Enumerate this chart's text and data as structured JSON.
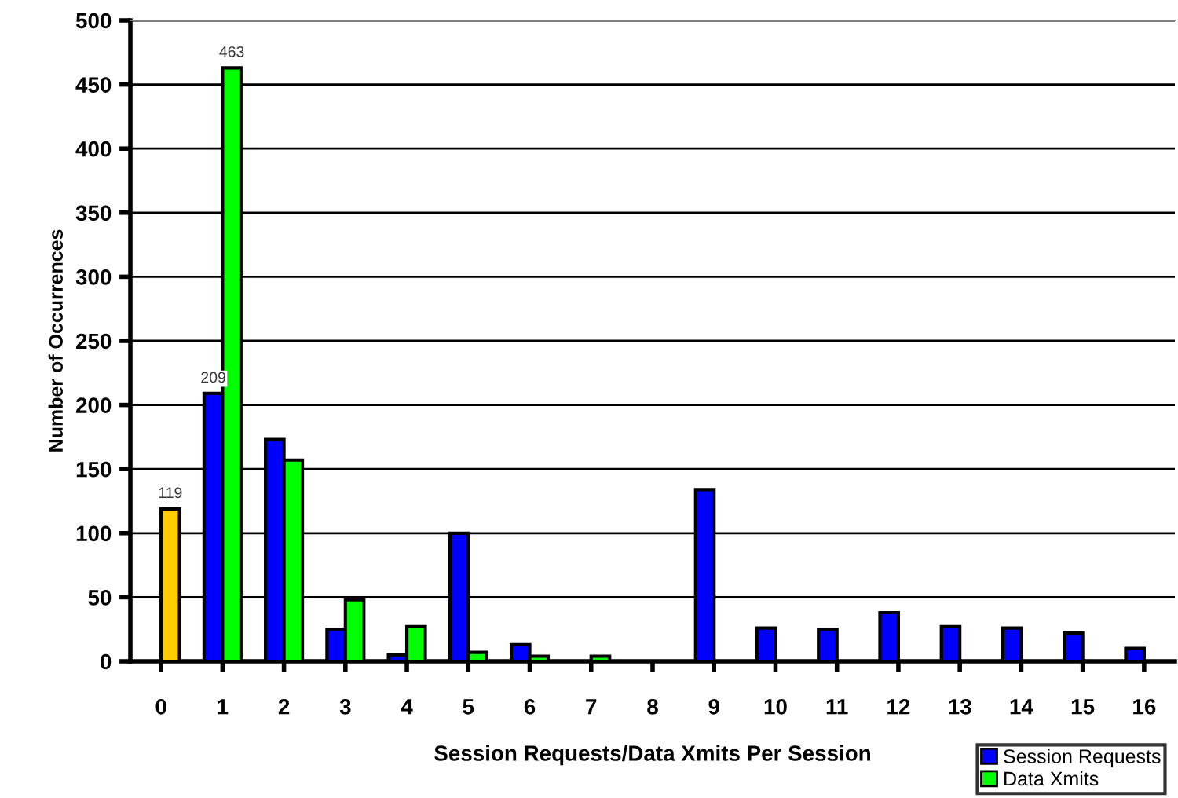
{
  "chart_data": {
    "type": "bar",
    "xlabel": "Session Requests/Data Xmits Per Session",
    "ylabel": "Number of Occurrences",
    "categories": [
      "0",
      "1",
      "2",
      "3",
      "4",
      "5",
      "6",
      "7",
      "8",
      "9",
      "10",
      "11",
      "12",
      "13",
      "14",
      "15",
      "16"
    ],
    "series": [
      {
        "name": "Session Requests",
        "color": "#0000ff",
        "values": [
          null,
          209,
          173,
          25,
          5,
          100,
          13,
          null,
          null,
          134,
          26,
          25,
          38,
          27,
          26,
          22,
          10
        ],
        "value_labels": [
          null,
          "209",
          null,
          null,
          null,
          null,
          null,
          null,
          null,
          null,
          null,
          null,
          null,
          null,
          null,
          null,
          null
        ]
      },
      {
        "name": "Data Xmits",
        "color": "#00ff00",
        "colors": [
          "#ffcc00",
          "#00ff00",
          "#00ff00",
          "#00ff00",
          "#00ff00",
          "#00ff00",
          "#00ff00",
          "#00ff00",
          "#00ff00",
          "#00ff00",
          "#00ff00",
          "#00ff00",
          "#00ff00",
          "#00ff00",
          "#00ff00",
          "#00ff00",
          "#00ff00"
        ],
        "values": [
          119,
          463,
          157,
          48,
          27,
          7,
          4,
          4,
          null,
          null,
          null,
          null,
          null,
          null,
          null,
          null,
          null
        ],
        "value_labels": [
          "119",
          "463",
          null,
          null,
          null,
          null,
          null,
          null,
          null,
          null,
          null,
          null,
          null,
          null,
          null,
          null,
          null
        ]
      }
    ],
    "ylim": [
      0,
      500
    ],
    "yticks": [
      0,
      50,
      100,
      150,
      200,
      250,
      300,
      350,
      400,
      450,
      500
    ],
    "grid": "y",
    "legend": "bottom right"
  }
}
